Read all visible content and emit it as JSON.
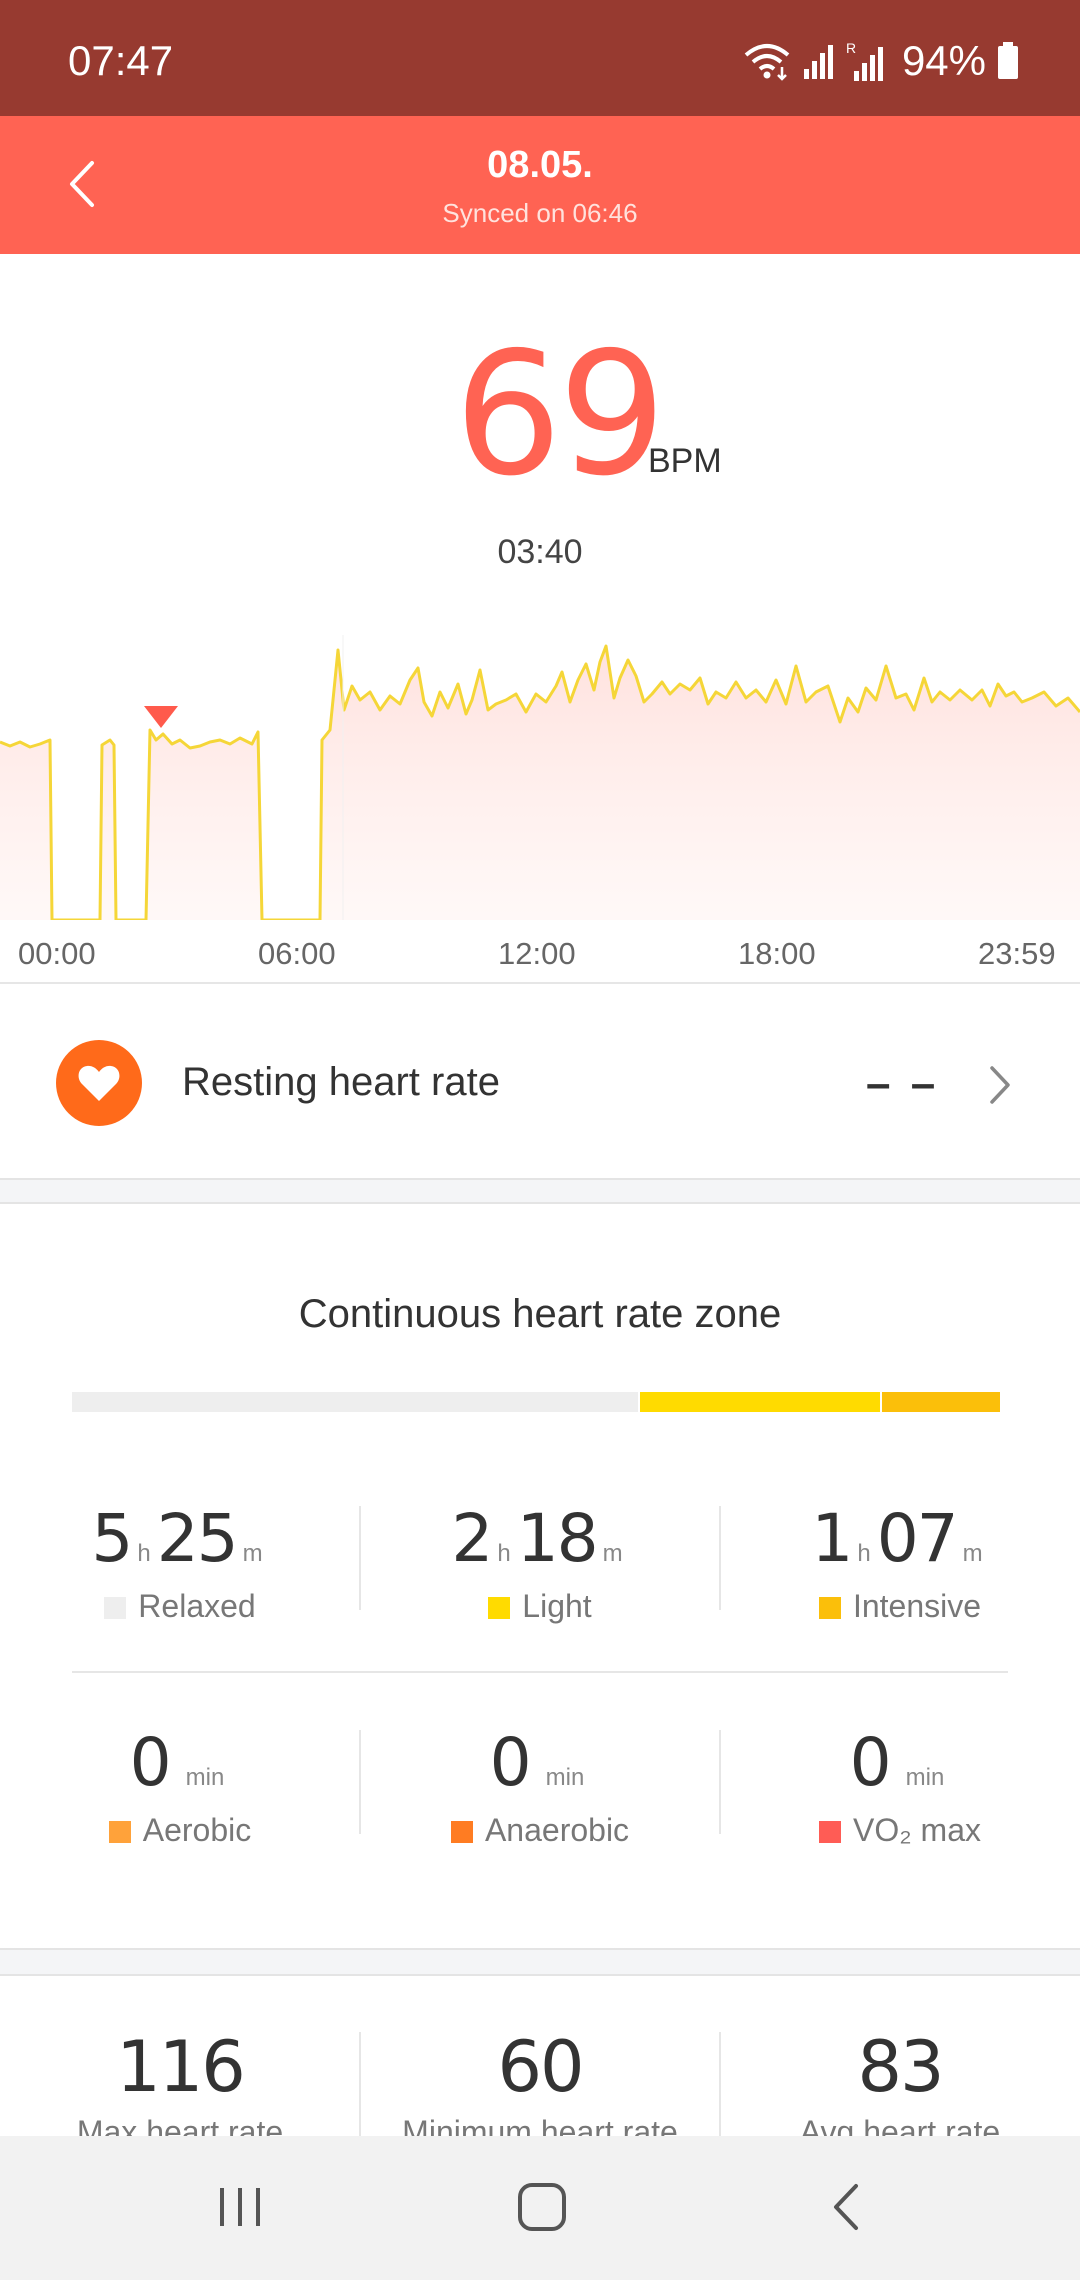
{
  "status_bar": {
    "time": "07:47",
    "battery_text": "94%",
    "icons": [
      "wifi-icon",
      "signal-icon",
      "roaming-signal-icon",
      "battery-icon"
    ]
  },
  "header": {
    "title": "08.05.",
    "subtitle": "Synced on 06:46",
    "background_color": "#ff6353"
  },
  "reading": {
    "value": "69",
    "unit": "BPM",
    "time": "03:40"
  },
  "chart_data": {
    "type": "area",
    "x_tick_labels": [
      "00:00",
      "06:00",
      "12:00",
      "18:00",
      "23:59"
    ],
    "marker_time": "03:40",
    "series_color": "#f5d638",
    "fill_color": "#ffe4e1",
    "x_range_hours": [
      0,
      24
    ],
    "note_gaps_hours": [
      [
        0.9,
        1.75
      ],
      [
        2.0,
        2.6
      ],
      [
        4.3,
        5.4
      ]
    ]
  },
  "resting": {
    "label": "Resting heart rate",
    "value": "– –",
    "icon": "heart-icon"
  },
  "zones": {
    "title": "Continuous heart rate zone",
    "bar": [
      {
        "name": "Relaxed",
        "fraction": 0.62,
        "color": "#eeeeee"
      },
      {
        "name": "Light",
        "fraction": 0.26,
        "color": "#ffdb00"
      },
      {
        "name": "Intensive",
        "fraction": 0.12,
        "color": "#fbbf0a"
      }
    ],
    "row1": [
      {
        "h": "5",
        "m": "25",
        "h_unit": "h",
        "m_unit": "m",
        "label": "Relaxed",
        "color": "#eeeeee"
      },
      {
        "h": "2",
        "m": "18",
        "h_unit": "h",
        "m_unit": "m",
        "label": "Light",
        "color": "#ffdb00"
      },
      {
        "h": "1",
        "m": "07",
        "h_unit": "h",
        "m_unit": "m",
        "label": "Intensive",
        "color": "#fbbf0a"
      }
    ],
    "row2": [
      {
        "value": "0",
        "unit": "min",
        "label": "Aerobic",
        "color": "#ffa23a"
      },
      {
        "value": "0",
        "unit": "min",
        "label": "Anaerobic",
        "color": "#ff7c22"
      },
      {
        "value": "0",
        "unit": "min",
        "label": "VO₂ max",
        "color": "#ff5c55"
      }
    ]
  },
  "summary": [
    {
      "value": "116",
      "label": "Max heart rate"
    },
    {
      "value": "60",
      "label": "Minimum heart rate"
    },
    {
      "value": "83",
      "label": "Avg heart rate"
    }
  ],
  "nav": {
    "icons": [
      "recent-apps-icon",
      "home-icon",
      "back-icon"
    ]
  }
}
